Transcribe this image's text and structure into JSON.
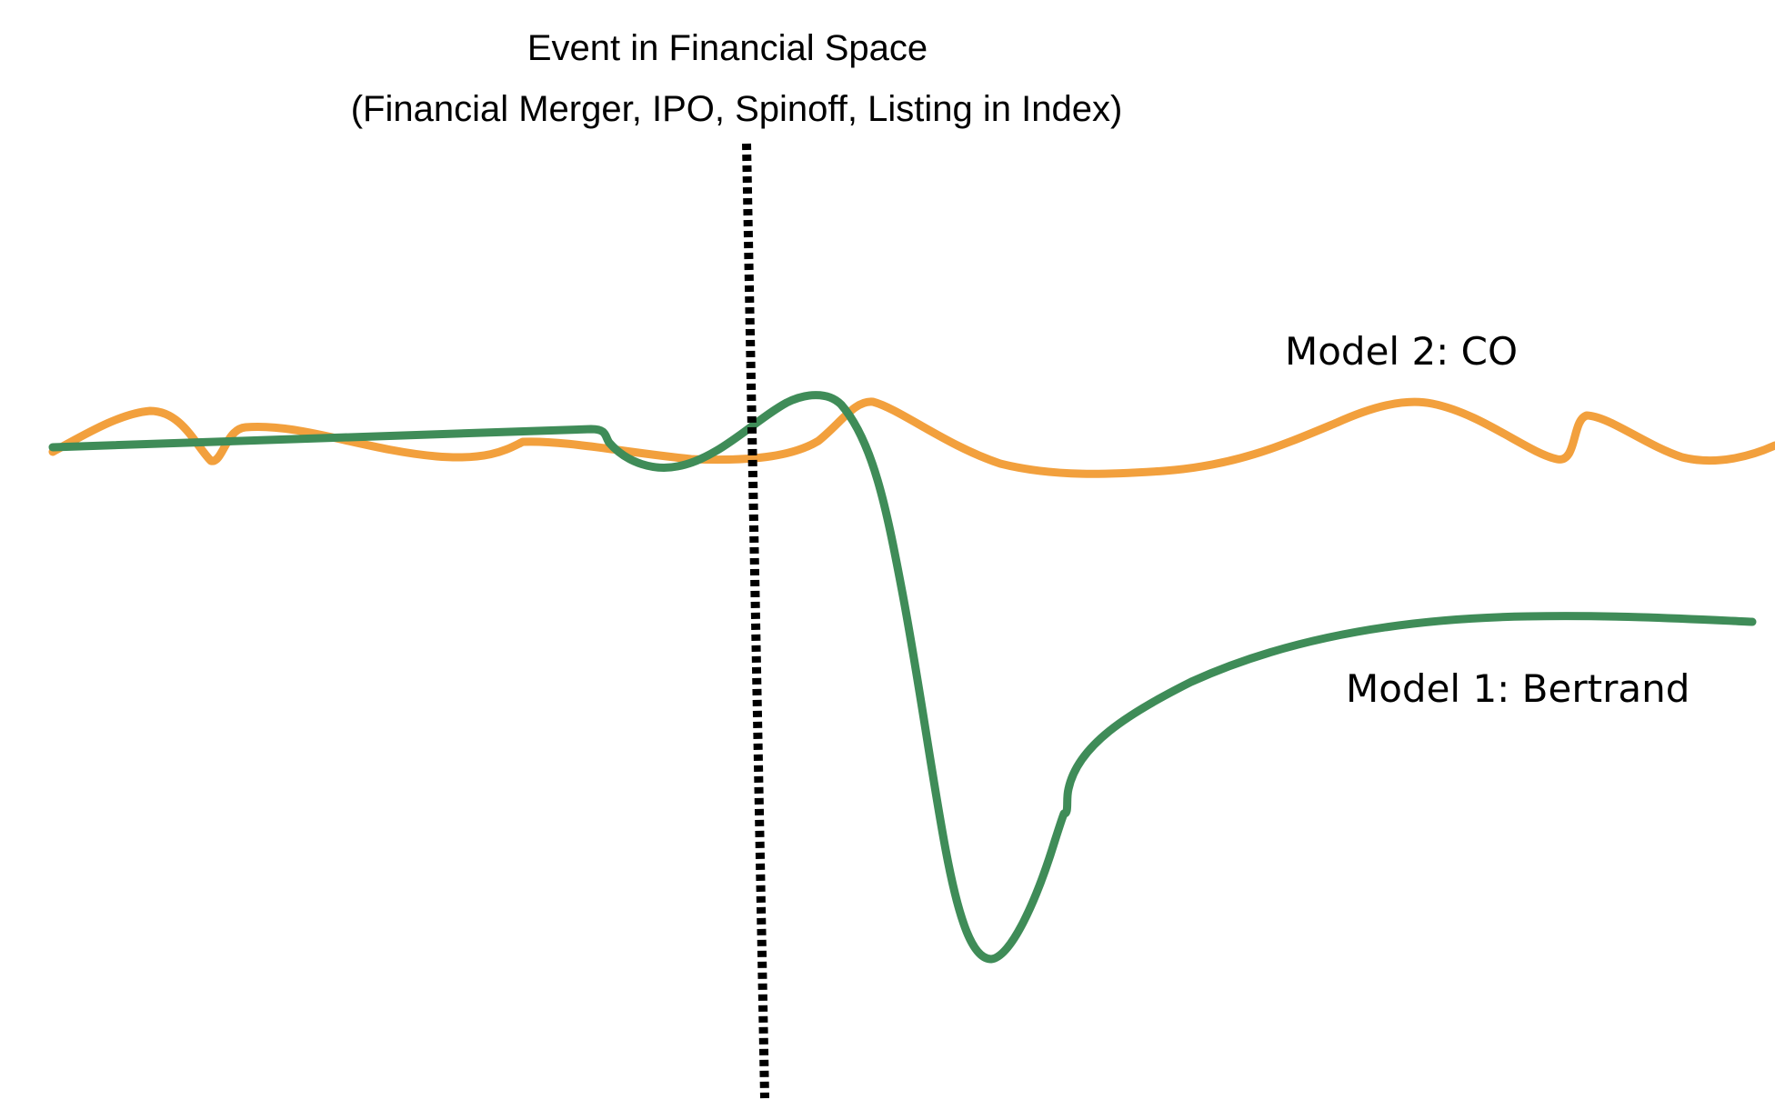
{
  "event": {
    "title_line1": "Event in Financial Space",
    "title_line2": "(Financial Merger, IPO, Spinoff, Listing in Index)"
  },
  "models": {
    "co": {
      "label": "Model 2: CO",
      "color": "#f2a03d"
    },
    "bertrand": {
      "label": "Model 1: Bertrand",
      "color": "#3f8c58"
    }
  },
  "event_line_color": "#000000"
}
